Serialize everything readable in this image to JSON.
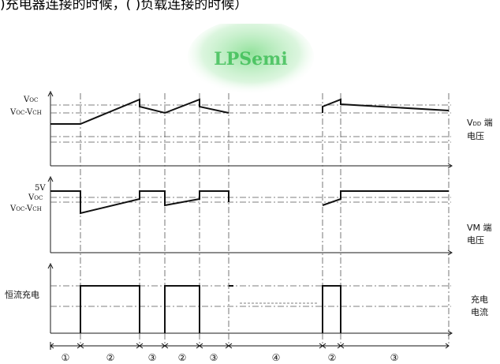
{
  "header": {
    "text": ")充电器连接的时候，(  )负载连接的时候）"
  },
  "watermark": {
    "text": "LPSemi",
    "color": "#2fb84a"
  },
  "panels": [
    {
      "id": "vdd",
      "left_labels": [
        {
          "main": "V",
          "sub": "OC",
          "rest": ""
        },
        {
          "main": "V",
          "sub": "OC",
          "rest": "-V",
          "sub2": "CH"
        }
      ],
      "right_label": {
        "line1_main": "V",
        "line1_sub": "DD",
        "line1_rest": " 端",
        "line2": "电压"
      }
    },
    {
      "id": "vm",
      "left_labels": [
        {
          "main": "5V"
        },
        {
          "main": "V",
          "sub": "OC",
          "rest": ""
        },
        {
          "main": "V",
          "sub": "OC",
          "rest": "-V",
          "sub2": "CH"
        }
      ],
      "right_label": {
        "line1": "VM 端",
        "line2": "电压"
      }
    },
    {
      "id": "charge",
      "left_label": "恒流充电",
      "right_label": {
        "line1": "充电",
        "line2": "电流"
      }
    }
  ],
  "phases": [
    "①",
    "②",
    "③",
    "②",
    "③",
    "④",
    "②",
    "③"
  ],
  "colors": {
    "line": "#1a1a1a",
    "dash": "#555555"
  }
}
